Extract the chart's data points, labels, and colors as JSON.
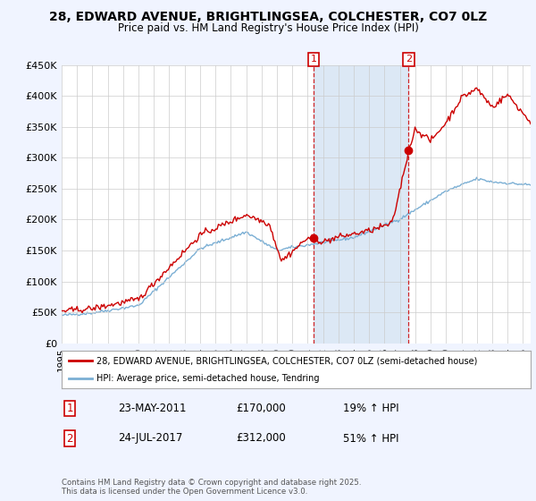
{
  "title": "28, EDWARD AVENUE, BRIGHTLINGSEA, COLCHESTER, CO7 0LZ",
  "subtitle": "Price paid vs. HM Land Registry's House Price Index (HPI)",
  "legend_line1": "28, EDWARD AVENUE, BRIGHTLINGSEA, COLCHESTER, CO7 0LZ (semi-detached house)",
  "legend_line2": "HPI: Average price, semi-detached house, Tendring",
  "annotation1_date": "23-MAY-2011",
  "annotation1_price": "£170,000",
  "annotation1_hpi": "19% ↑ HPI",
  "annotation2_date": "24-JUL-2017",
  "annotation2_price": "£312,000",
  "annotation2_hpi": "51% ↑ HPI",
  "footer": "Contains HM Land Registry data © Crown copyright and database right 2025.\nThis data is licensed under the Open Government Licence v3.0.",
  "line_color_red": "#cc0000",
  "line_color_blue": "#7bafd4",
  "shade_color": "#dce8f5",
  "background_color": "#f0f4ff",
  "plot_bg_color": "#ffffff",
  "ylim": [
    0,
    450000
  ],
  "yticks": [
    0,
    50000,
    100000,
    150000,
    200000,
    250000,
    300000,
    350000,
    400000,
    450000
  ],
  "ytick_labels": [
    "£0",
    "£50K",
    "£100K",
    "£150K",
    "£200K",
    "£250K",
    "£300K",
    "£350K",
    "£400K",
    "£450K"
  ],
  "vline1_x_year": 2011.38,
  "vline2_x_year": 2017.56,
  "marker1_price": 170000,
  "marker2_price": 312000,
  "xlim_start": 1995.0,
  "xlim_end": 2025.5
}
